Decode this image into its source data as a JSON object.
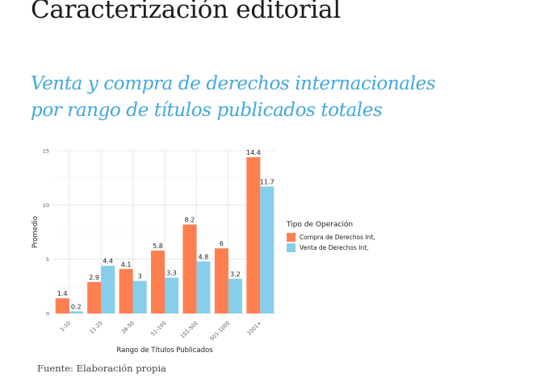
{
  "page": {
    "title": "Caracterización editorial",
    "subtitle_line1": "Venta y compra de derechos internacionales",
    "subtitle_line2": "por rango de títulos publicados totales",
    "source": "Fuente: Elaboración propia"
  },
  "legend": {
    "title": "Tipo de Operación"
  },
  "chart_data": {
    "type": "bar",
    "xlabel": "Rango de Títulos Publicados",
    "ylabel": "Promedio",
    "ylim": [
      0,
      15
    ],
    "yticks": [
      0,
      5,
      10,
      15
    ],
    "grid": true,
    "legend_position": "right",
    "categories": [
      "1-10",
      "11-25",
      "26-50",
      "51-100",
      "101-500",
      "501-1000",
      "1001+"
    ],
    "series": [
      {
        "name": "Compra de Derechos Int,",
        "color": "#ff7f50",
        "values": [
          1.4,
          2.9,
          4.1,
          5.8,
          8.2,
          6,
          14.4
        ],
        "labels": [
          "1.4",
          "2.9",
          "4.1",
          "5.8",
          "8.2",
          "6",
          "14.4"
        ]
      },
      {
        "name": "Venta de Derechos Int,",
        "color": "#87ceeb",
        "values": [
          0.2,
          4.4,
          3,
          3.3,
          4.8,
          3.2,
          11.7
        ],
        "labels": [
          "0.2",
          "4.4",
          "3",
          "3.3",
          "4.8",
          "3.2",
          "11.7"
        ]
      }
    ]
  }
}
